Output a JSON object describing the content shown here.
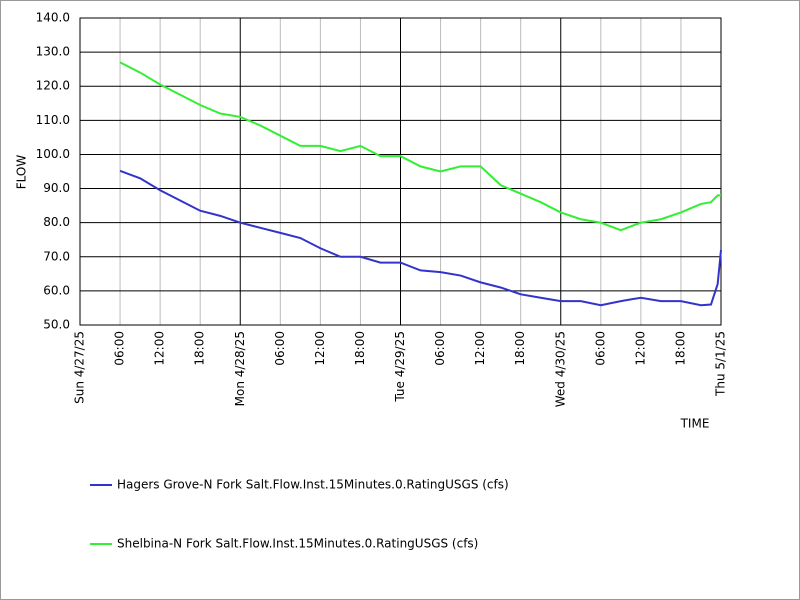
{
  "chart_data": {
    "type": "line",
    "ylabel": "FLOW",
    "xlabel": "TIME",
    "x": [
      "2025-04-27T06:00",
      "2025-04-27T09:00",
      "2025-04-27T12:00",
      "2025-04-27T15:00",
      "2025-04-27T18:00",
      "2025-04-27T21:00",
      "2025-04-28T00:00",
      "2025-04-28T03:00",
      "2025-04-28T06:00",
      "2025-04-28T09:00",
      "2025-04-28T12:00",
      "2025-04-28T15:00",
      "2025-04-28T18:00",
      "2025-04-28T21:00",
      "2025-04-29T00:00",
      "2025-04-29T03:00",
      "2025-04-29T06:00",
      "2025-04-29T09:00",
      "2025-04-29T12:00",
      "2025-04-29T15:00",
      "2025-04-29T18:00",
      "2025-04-29T21:00",
      "2025-04-30T00:00",
      "2025-04-30T03:00",
      "2025-04-30T06:00",
      "2025-04-30T09:00",
      "2025-04-30T12:00",
      "2025-04-30T15:00",
      "2025-04-30T18:00",
      "2025-04-30T21:00",
      "2025-04-30T22:30",
      "2025-04-30T23:30",
      "2025-05-01T00:00"
    ],
    "series": [
      {
        "name": "Hagers Grove-N Fork Salt.Flow.Inst.15Minutes.0.RatingUSGS (cfs)",
        "color": "#3333cc",
        "values": [
          95.2,
          93,
          89.5,
          86.5,
          83.5,
          82,
          80,
          78.5,
          77,
          75.5,
          72.5,
          70,
          70,
          68.3,
          68.3,
          66,
          65.5,
          64.5,
          62.5,
          61,
          59,
          58,
          57,
          57,
          55.8,
          57,
          58,
          57,
          57,
          55.8,
          56,
          62,
          72
        ]
      },
      {
        "name": "Shelbina-N Fork Salt.Flow.Inst.15Minutes.0.RatingUSGS (cfs)",
        "color": "#33ee33",
        "values": [
          127,
          124,
          120.5,
          117.5,
          114.5,
          112,
          111,
          108.5,
          105.5,
          102.5,
          102.5,
          101,
          102.5,
          99.5,
          99.5,
          96.5,
          95,
          96.5,
          96.5,
          91,
          88.5,
          86,
          83,
          81,
          80,
          77.8,
          80,
          81,
          83,
          85.5,
          86,
          88,
          88
        ]
      }
    ],
    "xlim": [
      "2025-04-27T00:00",
      "2025-05-01T00:00"
    ],
    "xticks": [
      {
        "value": "2025-04-27T00:00",
        "label": "Sun 4/27/25"
      },
      {
        "value": "2025-04-27T06:00",
        "label": "06:00"
      },
      {
        "value": "2025-04-27T12:00",
        "label": "12:00"
      },
      {
        "value": "2025-04-27T18:00",
        "label": "18:00"
      },
      {
        "value": "2025-04-28T00:00",
        "label": "Mon 4/28/25"
      },
      {
        "value": "2025-04-28T06:00",
        "label": "06:00"
      },
      {
        "value": "2025-04-28T12:00",
        "label": "12:00"
      },
      {
        "value": "2025-04-28T18:00",
        "label": "18:00"
      },
      {
        "value": "2025-04-29T00:00",
        "label": "Tue 4/29/25"
      },
      {
        "value": "2025-04-29T06:00",
        "label": "06:00"
      },
      {
        "value": "2025-04-29T12:00",
        "label": "12:00"
      },
      {
        "value": "2025-04-29T18:00",
        "label": "18:00"
      },
      {
        "value": "2025-04-30T00:00",
        "label": "Wed 4/30/25"
      },
      {
        "value": "2025-04-30T06:00",
        "label": "06:00"
      },
      {
        "value": "2025-04-30T12:00",
        "label": "12:00"
      },
      {
        "value": "2025-04-30T18:00",
        "label": "18:00"
      },
      {
        "value": "2025-05-01T00:00",
        "label": "Thu 5/1/25"
      }
    ],
    "ylim": [
      50,
      140
    ],
    "yticks": [
      {
        "value": 50,
        "label": "50.0"
      },
      {
        "value": 60,
        "label": "60.0"
      },
      {
        "value": 70,
        "label": "70.0"
      },
      {
        "value": 80,
        "label": "80.0"
      },
      {
        "value": 90,
        "label": "90.0"
      },
      {
        "value": 100,
        "label": "100.0"
      },
      {
        "value": 110,
        "label": "110.0"
      },
      {
        "value": 120,
        "label": "120.0"
      },
      {
        "value": 130,
        "label": "130.0"
      },
      {
        "value": 140,
        "label": "140.0"
      }
    ],
    "grid": true
  }
}
